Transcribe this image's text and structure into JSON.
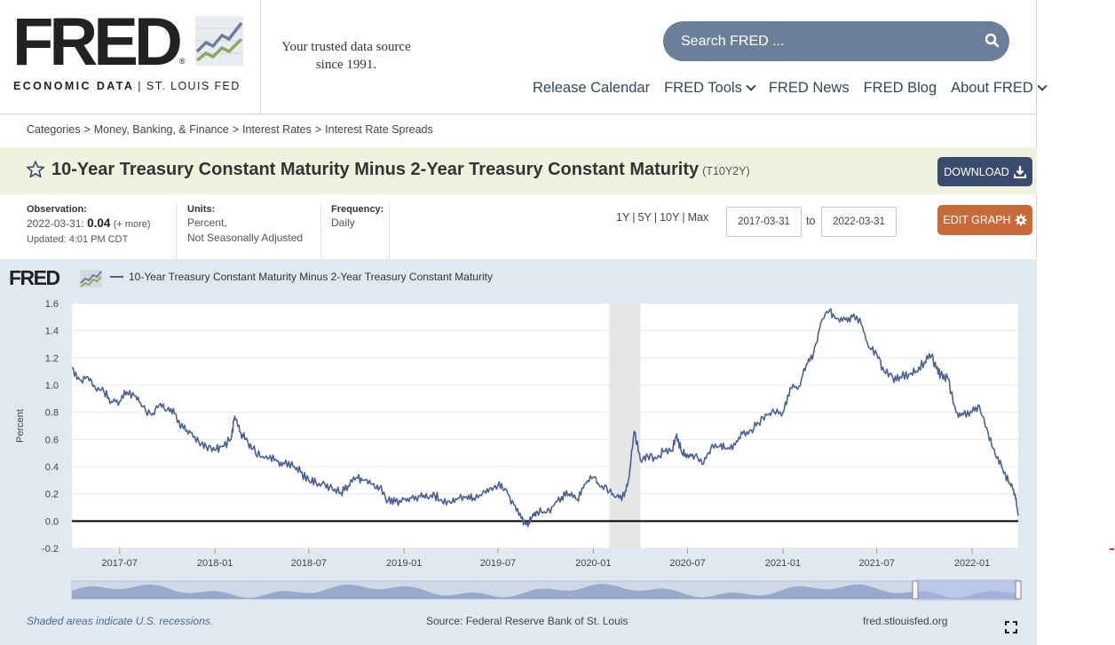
{
  "header": {
    "logo_text": "FRED",
    "logo_reg": "®",
    "logo_sub_left": "ECONOMIC DATA",
    "logo_sub_sep": "|",
    "logo_sub_right": "ST. LOUIS FED",
    "tagline_line1": "Your trusted data source",
    "tagline_line2": "since 1991.",
    "search_placeholder": "Search FRED ...",
    "nav": [
      "Release Calendar",
      "FRED Tools",
      "FRED News",
      "FRED Blog",
      "About FRED"
    ]
  },
  "breadcrumb": [
    "Categories",
    "Money, Banking, & Finance",
    "Interest Rates",
    "Interest Rate Spreads"
  ],
  "breadcrumb_sep": ">",
  "series": {
    "title": "10-Year Treasury Constant Maturity Minus 2-Year Treasury Constant Maturity",
    "id": "(T10Y2Y)",
    "download_label": "DOWNLOAD",
    "edit_graph_label": "EDIT GRAPH"
  },
  "meta": {
    "observation_label": "Observation:",
    "observation_date": "2022-03-31:",
    "observation_value": "0.04",
    "observation_more": "(+ more)",
    "updated": "Updated: 4:01 PM CDT",
    "units_label": "Units:",
    "units_line1": "Percent,",
    "units_line2": "Not Seasonally Adjusted",
    "frequency_label": "Frequency:",
    "frequency": "Daily"
  },
  "range": {
    "links": [
      "1Y",
      "5Y",
      "10Y",
      "Max"
    ],
    "link_sep": "|",
    "from": "2017-03-31",
    "to_label": "to",
    "to": "2022-03-31"
  },
  "chart": {
    "fred_mark": "FRED",
    "legend_label": "10-Year Treasury Constant Maturity Minus 2-Year Treasury Constant Maturity",
    "footer_recession": "Shaded areas indicate U.S. recessions.",
    "footer_source": "Source: Federal Reserve Bank of St. Louis",
    "footer_url": "fred.stlouisfed.org",
    "line_color": "#4a5f93",
    "recession_color": "#e6e6e6"
  },
  "chart_data": {
    "type": "line",
    "title": "",
    "xlabel": "",
    "ylabel": "Percent",
    "ylim": [
      -0.2,
      1.6
    ],
    "yticks": [
      1.6,
      1.4,
      1.2,
      1.0,
      0.8,
      0.6,
      0.4,
      0.2,
      0.0,
      -0.2
    ],
    "xticks": [
      "2017-07",
      "2018-01",
      "2018-07",
      "2019-01",
      "2019-07",
      "2020-01",
      "2020-07",
      "2021-01",
      "2021-07",
      "2022-01"
    ],
    "recessions": [
      {
        "start": "2020-02",
        "end": "2020-04"
      }
    ],
    "series": [
      {
        "name": "10-Year Treasury Constant Maturity Minus 2-Year Treasury Constant Maturity",
        "points": [
          [
            "2017-03-31",
            1.13
          ],
          [
            "2017-04-15",
            1.04
          ],
          [
            "2017-05-01",
            1.06
          ],
          [
            "2017-05-15",
            0.98
          ],
          [
            "2017-06-01",
            0.95
          ],
          [
            "2017-06-15",
            0.88
          ],
          [
            "2017-07-01",
            0.88
          ],
          [
            "2017-07-15",
            0.95
          ],
          [
            "2017-08-01",
            0.92
          ],
          [
            "2017-08-15",
            0.84
          ],
          [
            "2017-09-01",
            0.78
          ],
          [
            "2017-09-15",
            0.85
          ],
          [
            "2017-10-01",
            0.82
          ],
          [
            "2017-10-15",
            0.79
          ],
          [
            "2017-11-01",
            0.68
          ],
          [
            "2017-11-15",
            0.65
          ],
          [
            "2017-12-01",
            0.58
          ],
          [
            "2017-12-15",
            0.55
          ],
          [
            "2018-01-01",
            0.52
          ],
          [
            "2018-01-15",
            0.55
          ],
          [
            "2018-02-01",
            0.6
          ],
          [
            "2018-02-08",
            0.77
          ],
          [
            "2018-02-20",
            0.65
          ],
          [
            "2018-03-01",
            0.6
          ],
          [
            "2018-03-15",
            0.53
          ],
          [
            "2018-04-01",
            0.47
          ],
          [
            "2018-04-15",
            0.46
          ],
          [
            "2018-05-01",
            0.44
          ],
          [
            "2018-05-15",
            0.42
          ],
          [
            "2018-06-01",
            0.4
          ],
          [
            "2018-06-15",
            0.36
          ],
          [
            "2018-07-01",
            0.3
          ],
          [
            "2018-07-15",
            0.28
          ],
          [
            "2018-08-01",
            0.27
          ],
          [
            "2018-08-15",
            0.24
          ],
          [
            "2018-09-01",
            0.21
          ],
          [
            "2018-09-15",
            0.26
          ],
          [
            "2018-10-01",
            0.32
          ],
          [
            "2018-10-15",
            0.3
          ],
          [
            "2018-11-01",
            0.27
          ],
          [
            "2018-11-15",
            0.25
          ],
          [
            "2018-12-01",
            0.15
          ],
          [
            "2018-12-15",
            0.14
          ],
          [
            "2019-01-01",
            0.16
          ],
          [
            "2019-01-15",
            0.17
          ],
          [
            "2019-02-01",
            0.18
          ],
          [
            "2019-02-15",
            0.17
          ],
          [
            "2019-03-01",
            0.19
          ],
          [
            "2019-03-15",
            0.15
          ],
          [
            "2019-04-01",
            0.13
          ],
          [
            "2019-04-15",
            0.17
          ],
          [
            "2019-05-01",
            0.18
          ],
          [
            "2019-05-15",
            0.17
          ],
          [
            "2019-06-01",
            0.2
          ],
          [
            "2019-06-15",
            0.24
          ],
          [
            "2019-07-01",
            0.26
          ],
          [
            "2019-07-15",
            0.24
          ],
          [
            "2019-08-01",
            0.12
          ],
          [
            "2019-08-15",
            0.02
          ],
          [
            "2019-08-28",
            -0.04
          ],
          [
            "2019-09-05",
            0.03
          ],
          [
            "2019-09-15",
            0.07
          ],
          [
            "2019-10-01",
            0.06
          ],
          [
            "2019-10-15",
            0.11
          ],
          [
            "2019-11-01",
            0.18
          ],
          [
            "2019-11-15",
            0.2
          ],
          [
            "2019-12-01",
            0.16
          ],
          [
            "2019-12-15",
            0.27
          ],
          [
            "2020-01-01",
            0.32
          ],
          [
            "2020-01-15",
            0.25
          ],
          [
            "2020-02-01",
            0.22
          ],
          [
            "2020-02-15",
            0.18
          ],
          [
            "2020-03-01",
            0.18
          ],
          [
            "2020-03-10",
            0.32
          ],
          [
            "2020-03-20",
            0.66
          ],
          [
            "2020-04-01",
            0.45
          ],
          [
            "2020-04-15",
            0.48
          ],
          [
            "2020-05-01",
            0.46
          ],
          [
            "2020-05-15",
            0.51
          ],
          [
            "2020-06-01",
            0.52
          ],
          [
            "2020-06-10",
            0.64
          ],
          [
            "2020-06-20",
            0.5
          ],
          [
            "2020-07-01",
            0.49
          ],
          [
            "2020-07-15",
            0.48
          ],
          [
            "2020-08-01",
            0.42
          ],
          [
            "2020-08-15",
            0.54
          ],
          [
            "2020-09-01",
            0.55
          ],
          [
            "2020-09-15",
            0.53
          ],
          [
            "2020-10-01",
            0.56
          ],
          [
            "2020-10-15",
            0.64
          ],
          [
            "2020-11-01",
            0.67
          ],
          [
            "2020-11-15",
            0.72
          ],
          [
            "2020-12-01",
            0.78
          ],
          [
            "2020-12-15",
            0.8
          ],
          [
            "2021-01-01",
            0.8
          ],
          [
            "2021-01-15",
            0.98
          ],
          [
            "2021-02-01",
            0.99
          ],
          [
            "2021-02-15",
            1.15
          ],
          [
            "2021-03-01",
            1.23
          ],
          [
            "2021-03-15",
            1.46
          ],
          [
            "2021-04-01",
            1.55
          ],
          [
            "2021-04-15",
            1.49
          ],
          [
            "2021-05-01",
            1.48
          ],
          [
            "2021-05-15",
            1.5
          ],
          [
            "2021-06-01",
            1.45
          ],
          [
            "2021-06-15",
            1.28
          ],
          [
            "2021-07-01",
            1.23
          ],
          [
            "2021-07-15",
            1.1
          ],
          [
            "2021-08-01",
            1.05
          ],
          [
            "2021-08-15",
            1.06
          ],
          [
            "2021-09-01",
            1.08
          ],
          [
            "2021-09-15",
            1.1
          ],
          [
            "2021-10-01",
            1.17
          ],
          [
            "2021-10-15",
            1.22
          ],
          [
            "2021-10-25",
            1.12
          ],
          [
            "2021-11-01",
            1.07
          ],
          [
            "2021-11-15",
            1.05
          ],
          [
            "2021-12-01",
            0.8
          ],
          [
            "2021-12-15",
            0.78
          ],
          [
            "2022-01-01",
            0.8
          ],
          [
            "2022-01-15",
            0.85
          ],
          [
            "2022-02-01",
            0.65
          ],
          [
            "2022-02-15",
            0.48
          ],
          [
            "2022-03-01",
            0.38
          ],
          [
            "2022-03-15",
            0.28
          ],
          [
            "2022-03-25",
            0.2
          ],
          [
            "2022-03-31",
            0.04
          ]
        ]
      }
    ]
  }
}
